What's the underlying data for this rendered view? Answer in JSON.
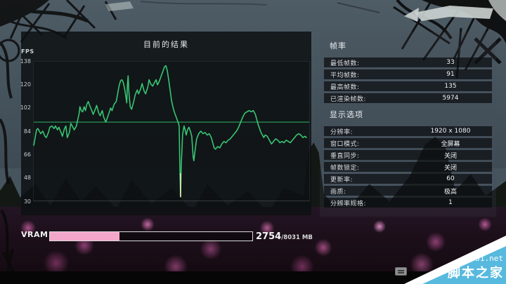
{
  "chart_data": {
    "type": "line",
    "title": "目前的结果",
    "ylabel": "FPS",
    "xlabel": "",
    "ylim": [
      30,
      138
    ],
    "yticks": [
      138,
      120,
      102,
      84,
      66,
      48,
      30
    ],
    "grid": false,
    "legend_position": "none",
    "average_fps": 91,
    "series": [
      {
        "name": "FPS",
        "points": [
          [
            0,
            73
          ],
          [
            2,
            79
          ],
          [
            4,
            85
          ],
          [
            6,
            86
          ],
          [
            8,
            84
          ],
          [
            10,
            82
          ],
          [
            13,
            84
          ],
          [
            16,
            80
          ],
          [
            18,
            79
          ],
          [
            21,
            83
          ],
          [
            23,
            87
          ],
          [
            26,
            88
          ],
          [
            29,
            86
          ],
          [
            31,
            88
          ],
          [
            34,
            85
          ],
          [
            36,
            87
          ],
          [
            39,
            83
          ],
          [
            41,
            80
          ],
          [
            44,
            86
          ],
          [
            46,
            88
          ],
          [
            48,
            79
          ],
          [
            51,
            83
          ],
          [
            53,
            90
          ],
          [
            56,
            87
          ],
          [
            58,
            85
          ],
          [
            61,
            88
          ],
          [
            63,
            93
          ],
          [
            65,
            98
          ],
          [
            66,
            103
          ],
          [
            68,
            100
          ],
          [
            70,
            99
          ],
          [
            72,
            103
          ],
          [
            74,
            100
          ],
          [
            76,
            105
          ],
          [
            78,
            107
          ],
          [
            80,
            104
          ],
          [
            83,
            100
          ],
          [
            85,
            97
          ],
          [
            88,
            101
          ],
          [
            90,
            104
          ],
          [
            93,
            98
          ],
          [
            95,
            96
          ],
          [
            98,
            100
          ],
          [
            100,
            95
          ],
          [
            103,
            91
          ],
          [
            105,
            94
          ],
          [
            107,
            97
          ],
          [
            110,
            102
          ],
          [
            112,
            100
          ],
          [
            115,
            105
          ],
          [
            118,
            107
          ],
          [
            120,
            113
          ],
          [
            122,
            119
          ],
          [
            124,
            123
          ],
          [
            126,
            124
          ],
          [
            128,
            122
          ],
          [
            130,
            117
          ],
          [
            132,
            110
          ],
          [
            133,
            106
          ],
          [
            134,
            120
          ],
          [
            135,
            127
          ],
          [
            136,
            115
          ],
          [
            138,
            103
          ],
          [
            140,
            101
          ],
          [
            143,
            107
          ],
          [
            145,
            112
          ],
          [
            148,
            116
          ],
          [
            150,
            113
          ],
          [
            153,
            117
          ],
          [
            155,
            121
          ],
          [
            158,
            115
          ],
          [
            160,
            113
          ],
          [
            163,
            118
          ],
          [
            165,
            124
          ],
          [
            167,
            121
          ],
          [
            170,
            119
          ],
          [
            172,
            121
          ],
          [
            175,
            124
          ],
          [
            177,
            120
          ],
          [
            179,
            122
          ],
          [
            181,
            125
          ],
          [
            183,
            128
          ],
          [
            185,
            131
          ],
          [
            187,
            134
          ],
          [
            189,
            135
          ],
          [
            191,
            131
          ],
          [
            193,
            124
          ],
          [
            195,
            116
          ],
          [
            197,
            108
          ],
          [
            199,
            103
          ],
          [
            201,
            99
          ],
          [
            203,
            96
          ],
          [
            205,
            93
          ],
          [
            207,
            90
          ],
          [
            208,
            88
          ],
          [
            209,
            55
          ],
          [
            210,
            33
          ],
          [
            211,
            58
          ],
          [
            213,
            82
          ],
          [
            215,
            88
          ],
          [
            217,
            84
          ],
          [
            218,
            81
          ],
          [
            220,
            85
          ],
          [
            222,
            87
          ],
          [
            224,
            84
          ],
          [
            226,
            80
          ],
          [
            227,
            72
          ],
          [
            228,
            64
          ],
          [
            229,
            61
          ],
          [
            231,
            70
          ],
          [
            233,
            78
          ],
          [
            236,
            82
          ],
          [
            239,
            84
          ],
          [
            242,
            82
          ],
          [
            245,
            83
          ],
          [
            248,
            81
          ],
          [
            251,
            82
          ],
          [
            254,
            79
          ],
          [
            256,
            75
          ],
          [
            258,
            71
          ],
          [
            260,
            70
          ],
          [
            263,
            72
          ],
          [
            266,
            71
          ],
          [
            269,
            74
          ],
          [
            272,
            76
          ],
          [
            275,
            75
          ],
          [
            278,
            77
          ],
          [
            281,
            78
          ],
          [
            284,
            80
          ],
          [
            287,
            82
          ],
          [
            290,
            84
          ],
          [
            293,
            87
          ],
          [
            296,
            91
          ],
          [
            299,
            95
          ],
          [
            302,
            98
          ],
          [
            305,
            99
          ],
          [
            308,
            100
          ],
          [
            311,
            99
          ],
          [
            314,
            100
          ],
          [
            317,
            97
          ],
          [
            319,
            93
          ],
          [
            321,
            89
          ],
          [
            323,
            86
          ],
          [
            325,
            83
          ],
          [
            327,
            81
          ],
          [
            329,
            79
          ],
          [
            331,
            81
          ],
          [
            334,
            80
          ],
          [
            337,
            77
          ],
          [
            340,
            74
          ],
          [
            343,
            76
          ],
          [
            346,
            78
          ],
          [
            349,
            77
          ],
          [
            352,
            75
          ],
          [
            355,
            76
          ],
          [
            358,
            75
          ],
          [
            361,
            77
          ],
          [
            364,
            76
          ],
          [
            367,
            75
          ],
          [
            370,
            77
          ],
          [
            373,
            79
          ],
          [
            376,
            81
          ],
          [
            379,
            82
          ],
          [
            382,
            81
          ],
          [
            385,
            79
          ],
          [
            388,
            80
          ],
          [
            390,
            79
          ]
        ]
      }
    ]
  },
  "frame_rate": {
    "header": "帧率",
    "rows": [
      {
        "label": "最低帧数:",
        "value": "33"
      },
      {
        "label": "平均帧数:",
        "value": "91"
      },
      {
        "label": "最高帧数:",
        "value": "135"
      },
      {
        "label": "已渲染帧数:",
        "value": "5974"
      }
    ]
  },
  "display_options": {
    "header": "显示选项",
    "rows": [
      {
        "label": "分辨率:",
        "value": "1920 x 1080"
      },
      {
        "label": "窗口模式:",
        "value": "全屏幕"
      },
      {
        "label": "垂直同步:",
        "value": "关闭"
      },
      {
        "label": "帧数锁定:",
        "value": "关闭"
      },
      {
        "label": "更新率:",
        "value": "60"
      },
      {
        "label": "画质:",
        "value": "极高"
      },
      {
        "label": "分辨率规格:",
        "value": "1"
      }
    ]
  },
  "vram": {
    "label": "VRAM",
    "used": "2754",
    "total": "/8031 MB",
    "percent": 34.3
  },
  "watermark": {
    "site": "jb51.net",
    "name": "脚本之家"
  },
  "colors": {
    "fps_line": "#38c673",
    "avg_line": "#2eb863",
    "min_dip_highlight": "#e4ecb4",
    "vram_fill": "#f4a6ca",
    "watermark_blue": "#57b9de"
  }
}
